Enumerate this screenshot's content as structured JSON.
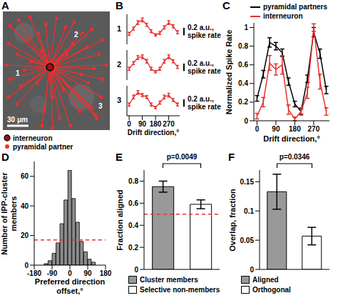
{
  "chart_data": [
    {
      "panel": "A",
      "type": "image",
      "labels": [
        "1",
        "2",
        "3"
      ],
      "scale_bar": {
        "label": "30 μm"
      },
      "markers": [
        {
          "name": "interneuron",
          "color": "#a01010"
        },
        {
          "name": "pyramidal partner",
          "color": "#ff2a2a"
        }
      ]
    },
    {
      "panel": "B",
      "label": "1",
      "type": "line",
      "x": [
        0,
        30,
        60,
        90,
        120,
        150,
        180,
        210,
        240,
        270,
        300,
        330
      ],
      "values": [
        0.28,
        0.42,
        0.58,
        0.65,
        0.52,
        0.35,
        0.25,
        0.3,
        0.45,
        0.58,
        0.48,
        0.32
      ],
      "errors": [
        0.04,
        0.04,
        0.05,
        0.05,
        0.04,
        0.04,
        0.03,
        0.04,
        0.04,
        0.05,
        0.04,
        0.04
      ],
      "color": "#e8312f",
      "xlim": [
        -15,
        345
      ],
      "ylim": [
        0,
        0.8
      ],
      "tick_labels": false,
      "scale_bar": {
        "value": 0.2,
        "label": "0.2 a.u., spike rate"
      }
    },
    {
      "label": "2",
      "type": "line",
      "x": [
        0,
        30,
        60,
        90,
        120,
        150,
        180,
        210,
        240,
        270,
        300,
        330
      ],
      "values": [
        0.3,
        0.45,
        0.6,
        0.62,
        0.5,
        0.3,
        0.22,
        0.3,
        0.5,
        0.62,
        0.5,
        0.35
      ],
      "errors": [
        0.04,
        0.04,
        0.05,
        0.05,
        0.05,
        0.04,
        0.03,
        0.04,
        0.05,
        0.05,
        0.04,
        0.04
      ],
      "color": "#e8312f",
      "xlim": [
        -15,
        345
      ],
      "ylim": [
        0,
        0.8
      ],
      "tick_labels": false,
      "scale_bar": {
        "value": 0.2,
        "label": "0.2 a.u., spike rate"
      }
    },
    {
      "label": "3",
      "type": "line",
      "x": [
        0,
        30,
        60,
        90,
        120,
        150,
        180,
        210,
        240,
        270,
        300,
        330
      ],
      "values": [
        0.3,
        0.5,
        0.62,
        0.55,
        0.5,
        0.3,
        0.22,
        0.35,
        0.5,
        0.55,
        0.42,
        0.3
      ],
      "errors": [
        0.04,
        0.05,
        0.05,
        0.04,
        0.04,
        0.04,
        0.03,
        0.04,
        0.05,
        0.05,
        0.04,
        0.04
      ],
      "color": "#e8312f",
      "xlim": [
        -15,
        345
      ],
      "ylim": [
        0,
        0.8
      ],
      "xticks": [
        0,
        90,
        180,
        270
      ],
      "tick_labels": "x",
      "x_label": "Drift direction,°",
      "scale_bar": {
        "value": 0.2,
        "label": "0.2 a.u., spike rate"
      }
    },
    {
      "panel": "C",
      "type": "line",
      "x": [
        0,
        30,
        60,
        90,
        120,
        150,
        180,
        210,
        240,
        270,
        300,
        330
      ],
      "series": [
        {
          "name": "pyramidal partners",
          "color": "#000000",
          "values": [
            0.24,
            0.5,
            0.84,
            0.8,
            0.73,
            0.42,
            0.18,
            0.1,
            0.45,
            0.95,
            0.72,
            0.33
          ],
          "errors": [
            0.03,
            0.04,
            0.05,
            0.04,
            0.04,
            0.04,
            0.03,
            0.03,
            0.04,
            0.05,
            0.05,
            0.04
          ]
        },
        {
          "name": "interneuron",
          "color": "#e8312f",
          "values": [
            0.05,
            0.2,
            0.62,
            0.55,
            0.6,
            0.12,
            0.02,
            0.1,
            0.3,
            1.0,
            0.42,
            0.1
          ],
          "errors": [
            0.03,
            0.05,
            0.08,
            0.06,
            0.1,
            0.05,
            0.02,
            0.04,
            0.06,
            0.04,
            0.08,
            0.04
          ]
        }
      ],
      "xlim": [
        -15,
        345
      ],
      "xticks": [
        0,
        90,
        180,
        270
      ],
      "ylim": [
        0,
        1.05
      ],
      "yticks": [
        0,
        0.2,
        0.4,
        0.6,
        0.8,
        1
      ],
      "x_label": "Drift direction,°",
      "y_label": "Normalized Spike Rate",
      "legend": "top"
    },
    {
      "panel": "D",
      "type": "histogram",
      "bins": [
        -170,
        -150,
        -130,
        -110,
        -90,
        -70,
        -50,
        -30,
        -10,
        10,
        30,
        50,
        70,
        90,
        110,
        130,
        150,
        170
      ],
      "values": [
        0,
        0,
        1,
        3,
        8,
        15,
        28,
        44,
        64,
        45,
        29,
        16,
        9,
        4,
        2,
        0,
        0
      ],
      "color": "#8c8c8c",
      "xlim": [
        -180,
        180
      ],
      "xticks": [
        -180,
        -90,
        0,
        90,
        180
      ],
      "ylim": [
        0,
        70
      ],
      "yticks": [
        0,
        20,
        40,
        60
      ],
      "reference_y": 17,
      "x_label": "Preferred direction offset,°",
      "y_label": "Number of IPP-cluster members"
    },
    {
      "panel": "E",
      "type": "bar",
      "categories": [
        "Cluster members",
        "Selective non-members"
      ],
      "values": [
        0.75,
        0.59
      ],
      "errors": [
        0.05,
        0.04
      ],
      "colors": [
        "#999999",
        "#ffffff"
      ],
      "ylim": [
        0,
        0.9
      ],
      "yticks": [
        0,
        0.2,
        0.4,
        0.6,
        0.8
      ],
      "y_label": "Fraction aligned",
      "reference_y": 0.5,
      "annotation": "p=0.0049",
      "legend": "bottom",
      "tick_labels": "y"
    },
    {
      "panel": "F",
      "type": "bar",
      "categories": [
        "Aligned",
        "Orthogonal"
      ],
      "values": [
        0.133,
        0.057
      ],
      "errors": [
        0.03,
        0.015
      ],
      "colors": [
        "#999999",
        "#ffffff"
      ],
      "ylim": [
        0,
        0.17
      ],
      "yticks": [
        0,
        0.05,
        0.1,
        0.15
      ],
      "y_label": "Overlap, fraction",
      "annotation": "p=0.0346",
      "legend": "bottom",
      "tick_labels": "y"
    }
  ]
}
